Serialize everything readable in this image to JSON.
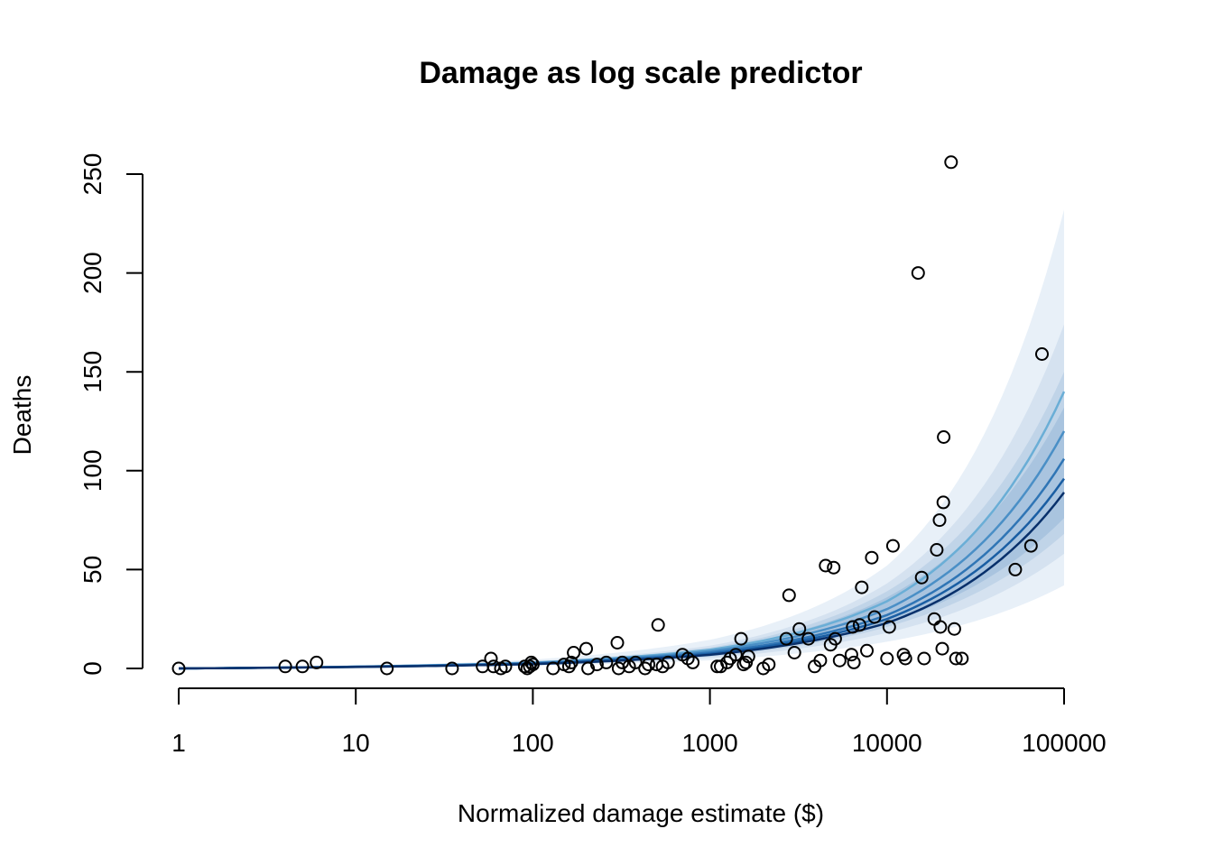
{
  "chart_data": {
    "type": "scatter",
    "title": "Damage as log scale predictor",
    "xlabel": "Normalized damage estimate ($)",
    "ylabel": "Deaths",
    "x_scale": "log10",
    "xlim": [
      1,
      100000
    ],
    "ylim": [
      0,
      250
    ],
    "x_ticks": [
      "1",
      "10",
      "100",
      "1000",
      "10000",
      "100000"
    ],
    "y_ticks": [
      "0",
      "50",
      "100",
      "150",
      "200",
      "250"
    ],
    "grid": false,
    "colors": {
      "points": "#000000",
      "bands": [
        "#e8f0f8",
        "#d5e2f0",
        "#c0d4e8",
        "#a9c4df"
      ],
      "lines": [
        "#6aaed6",
        "#4a8fc6",
        "#2f75b5",
        "#1a5ea3",
        "#08306b"
      ]
    },
    "bands": [
      {
        "x": [
          1,
          10,
          100,
          1000,
          10000,
          100000
        ],
        "lower": [
          0,
          0.5,
          1.3,
          4.1,
          13.5,
          42
        ],
        "upper": [
          0,
          1.3,
          4.5,
          14.5,
          52,
          232
        ]
      },
      {
        "x": [
          1,
          10,
          100,
          1000,
          10000,
          100000
        ],
        "lower": [
          0,
          0.6,
          1.7,
          5.3,
          18,
          58
        ],
        "upper": [
          0,
          1.1,
          3.6,
          11.5,
          43,
          174
        ]
      },
      {
        "x": [
          1,
          10,
          100,
          1000,
          10000,
          100000
        ],
        "lower": [
          0,
          0.7,
          2.0,
          6.0,
          21,
          68
        ],
        "upper": [
          0,
          1.0,
          3.3,
          10.5,
          39,
          150
        ]
      },
      {
        "x": [
          1,
          10,
          100,
          1000,
          10000,
          100000
        ],
        "lower": [
          0,
          0.75,
          2.2,
          6.6,
          23,
          76
        ],
        "upper": [
          0,
          0.95,
          3.0,
          9.7,
          36,
          132
        ]
      }
    ],
    "series": [
      {
        "x": [
          1,
          10,
          100,
          1000,
          10000,
          100000
        ],
        "y": [
          0,
          0.95,
          3.0,
          9.5,
          34,
          140
        ]
      },
      {
        "x": [
          1,
          10,
          100,
          1000,
          10000,
          100000
        ],
        "y": [
          0,
          0.9,
          2.8,
          8.8,
          30,
          120
        ]
      },
      {
        "x": [
          1,
          10,
          100,
          1000,
          10000,
          100000
        ],
        "y": [
          0,
          0.85,
          2.6,
          8.0,
          27,
          106
        ]
      },
      {
        "x": [
          1,
          10,
          100,
          1000,
          10000,
          100000
        ],
        "y": [
          0,
          0.8,
          2.4,
          7.4,
          25,
          96
        ]
      },
      {
        "x": [
          1,
          10,
          100,
          1000,
          10000,
          100000
        ],
        "y": [
          0,
          0.75,
          2.2,
          6.9,
          23,
          89
        ]
      }
    ],
    "points": [
      [
        1,
        0
      ],
      [
        4,
        1
      ],
      [
        5,
        1
      ],
      [
        6,
        3
      ],
      [
        15,
        0
      ],
      [
        35,
        0
      ],
      [
        52,
        1
      ],
      [
        58,
        5
      ],
      [
        60,
        1
      ],
      [
        66,
        0
      ],
      [
        70,
        1
      ],
      [
        90,
        1
      ],
      [
        93,
        0
      ],
      [
        96,
        1
      ],
      [
        98,
        3
      ],
      [
        100,
        2
      ],
      [
        130,
        0
      ],
      [
        150,
        2
      ],
      [
        160,
        1
      ],
      [
        165,
        3
      ],
      [
        170,
        8
      ],
      [
        200,
        10
      ],
      [
        205,
        0
      ],
      [
        230,
        2
      ],
      [
        260,
        3
      ],
      [
        300,
        13
      ],
      [
        305,
        0
      ],
      [
        320,
        3
      ],
      [
        350,
        1
      ],
      [
        380,
        3
      ],
      [
        430,
        0
      ],
      [
        450,
        2
      ],
      [
        500,
        2
      ],
      [
        510,
        22
      ],
      [
        540,
        1
      ],
      [
        580,
        3
      ],
      [
        700,
        7
      ],
      [
        750,
        5
      ],
      [
        800,
        3
      ],
      [
        1100,
        1
      ],
      [
        1150,
        1
      ],
      [
        1250,
        3
      ],
      [
        1300,
        5
      ],
      [
        1400,
        7
      ],
      [
        1500,
        15
      ],
      [
        1550,
        2
      ],
      [
        1600,
        3
      ],
      [
        1650,
        6
      ],
      [
        2000,
        0
      ],
      [
        2150,
        2
      ],
      [
        2700,
        15
      ],
      [
        2800,
        37
      ],
      [
        3000,
        8
      ],
      [
        3200,
        20
      ],
      [
        3600,
        15
      ],
      [
        3900,
        1
      ],
      [
        4200,
        4
      ],
      [
        4500,
        52
      ],
      [
        4800,
        12
      ],
      [
        5000,
        51
      ],
      [
        5100,
        15
      ],
      [
        5400,
        4
      ],
      [
        6300,
        7
      ],
      [
        6400,
        21
      ],
      [
        6500,
        3
      ],
      [
        7000,
        22
      ],
      [
        7200,
        41
      ],
      [
        7700,
        9
      ],
      [
        8200,
        56
      ],
      [
        8500,
        26
      ],
      [
        10000,
        5
      ],
      [
        10300,
        21
      ],
      [
        10800,
        62
      ],
      [
        12400,
        7
      ],
      [
        12700,
        5
      ],
      [
        15000,
        200
      ],
      [
        15700,
        46
      ],
      [
        16200,
        5
      ],
      [
        18500,
        25
      ],
      [
        19100,
        60
      ],
      [
        19800,
        75
      ],
      [
        20000,
        21
      ],
      [
        20500,
        10
      ],
      [
        20800,
        84
      ],
      [
        20900,
        117
      ],
      [
        23000,
        256
      ],
      [
        24000,
        20
      ],
      [
        24500,
        5
      ],
      [
        26500,
        5
      ],
      [
        53000,
        50
      ],
      [
        65000,
        62
      ],
      [
        75000,
        159
      ]
    ]
  }
}
